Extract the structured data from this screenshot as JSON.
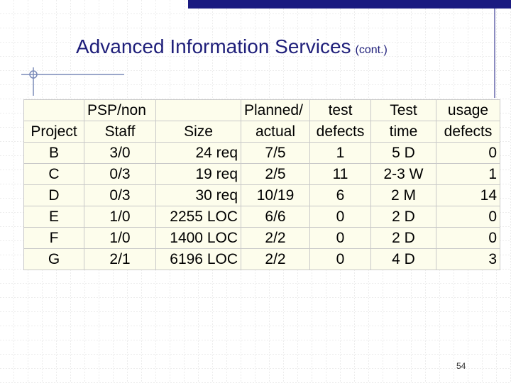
{
  "title": "Advanced Information Services",
  "subtitle": "(cont.)",
  "table": {
    "header": [
      [
        "",
        "PSP/non",
        "",
        "Planned/",
        "test",
        "Test",
        "usage"
      ],
      [
        "Project",
        "Staff",
        "Size",
        "actual",
        "defects",
        "time",
        "defects"
      ]
    ],
    "rows": [
      [
        "B",
        "3/0",
        "24 req",
        "7/5",
        "1",
        "5 D",
        "0"
      ],
      [
        "C",
        "0/3",
        "19 req",
        "2/5",
        "11",
        "2-3 W",
        "1"
      ],
      [
        "D",
        "0/3",
        "30 req",
        "10/19",
        "6",
        "2 M",
        "14"
      ],
      [
        "E",
        "1/0",
        "2255 LOC",
        "6/6",
        "0",
        "2 D",
        "0"
      ],
      [
        "F",
        "1/0",
        "1400 LOC",
        "2/2",
        "0",
        "2 D",
        "0"
      ],
      [
        "G",
        "2/1",
        "6196 LOC",
        "2/2",
        "0",
        "4 D",
        "3"
      ]
    ]
  },
  "page_number": "54"
}
